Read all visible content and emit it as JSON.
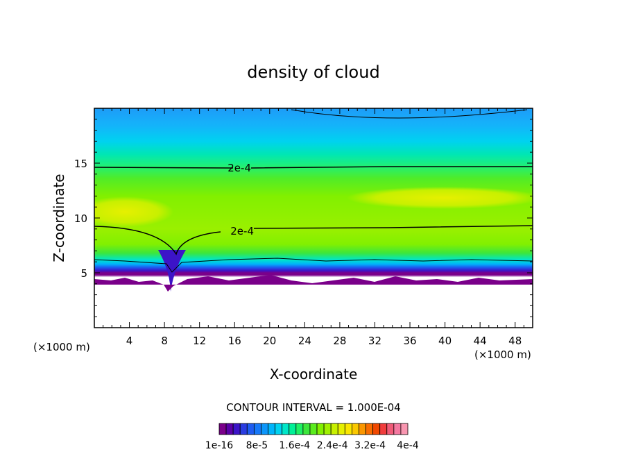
{
  "chart_data": {
    "type": "heatmap",
    "title": "density of cloud",
    "xlabel": "X-coordinate",
    "ylabel": "Z-coordinate",
    "x_unit_label": "(×1000 m)",
    "z_unit_label": "(×1000 m)",
    "xlim": [
      0,
      50
    ],
    "ylim": [
      0,
      20
    ],
    "x_ticks": [
      "4",
      "8",
      "12",
      "16",
      "20",
      "24",
      "28",
      "32",
      "36",
      "40",
      "44",
      "48"
    ],
    "y_ticks": [
      "5",
      "10",
      "15"
    ],
    "contour_interval_text": "CONTOUR INTERVAL = 1.000E-04",
    "contour_labels": [
      "2e-4",
      "2e-4"
    ],
    "colorbar": {
      "tick_labels": [
        "1e-16",
        "8e-5",
        "1.6e-4",
        "2.4e-4",
        "3.2e-4",
        "4e-4"
      ],
      "tick_values": [
        1e-16,
        8e-05,
        0.00016,
        0.00024,
        0.00032,
        0.0004
      ],
      "colors": [
        "#7a008a",
        "#5a00a8",
        "#3c14c8",
        "#2a3ce0",
        "#1e5cf0",
        "#1678f8",
        "#0c96fa",
        "#00b4fa",
        "#00d2f0",
        "#00e6c8",
        "#00f096",
        "#1ef064",
        "#3ce63c",
        "#5aec1e",
        "#82f000",
        "#a0f000",
        "#c8f000",
        "#e6f000",
        "#fae600",
        "#fac800",
        "#fa9600",
        "#f86c00",
        "#f04800",
        "#f03c3c",
        "#f05a78",
        "#f478a0",
        "#f896b0"
      ]
    },
    "field_description_levels": {
      "cloud_base_z": 4.5,
      "cloud_top_high_band_z": 20
    }
  }
}
